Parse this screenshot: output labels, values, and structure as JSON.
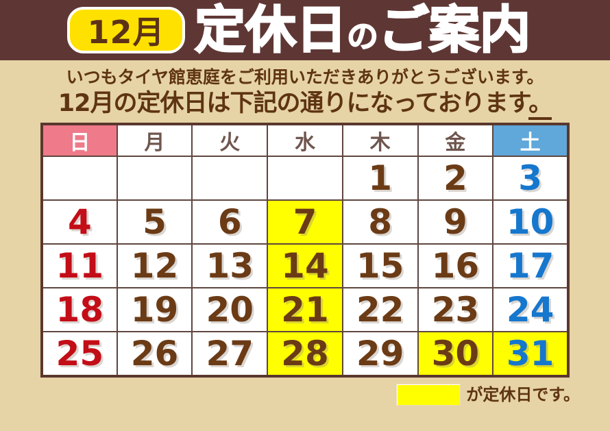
{
  "header": {
    "badge": "12月",
    "title_main1": "定休日",
    "title_particle": "の",
    "title_main2": "ご案内"
  },
  "intro": {
    "line1": "いつもタイヤ館恵庭をご利用いただきありがとうございます。",
    "line2_main": "12月の定休日は下記の通りになっております",
    "line2_tail": "。"
  },
  "calendar": {
    "weekdays": [
      {
        "label": "日",
        "type": "sunday"
      },
      {
        "label": "月",
        "type": "weekday"
      },
      {
        "label": "火",
        "type": "weekday"
      },
      {
        "label": "水",
        "type": "weekday"
      },
      {
        "label": "木",
        "type": "weekday"
      },
      {
        "label": "金",
        "type": "weekday"
      },
      {
        "label": "土",
        "type": "saturday"
      }
    ],
    "rows": [
      [
        {
          "day": "",
          "color": "brown",
          "holiday": false
        },
        {
          "day": "",
          "color": "brown",
          "holiday": false
        },
        {
          "day": "",
          "color": "brown",
          "holiday": false
        },
        {
          "day": "",
          "color": "brown",
          "holiday": false
        },
        {
          "day": "1",
          "color": "brown",
          "holiday": false
        },
        {
          "day": "2",
          "color": "brown",
          "holiday": false
        },
        {
          "day": "3",
          "color": "blue",
          "holiday": false
        }
      ],
      [
        {
          "day": "4",
          "color": "red",
          "holiday": false
        },
        {
          "day": "5",
          "color": "brown",
          "holiday": false
        },
        {
          "day": "6",
          "color": "brown",
          "holiday": false
        },
        {
          "day": "7",
          "color": "brown",
          "holiday": true
        },
        {
          "day": "8",
          "color": "brown",
          "holiday": false
        },
        {
          "day": "9",
          "color": "brown",
          "holiday": false
        },
        {
          "day": "10",
          "color": "blue",
          "holiday": false
        }
      ],
      [
        {
          "day": "11",
          "color": "red",
          "holiday": false
        },
        {
          "day": "12",
          "color": "brown",
          "holiday": false
        },
        {
          "day": "13",
          "color": "brown",
          "holiday": false
        },
        {
          "day": "14",
          "color": "brown",
          "holiday": true
        },
        {
          "day": "15",
          "color": "brown",
          "holiday": false
        },
        {
          "day": "16",
          "color": "brown",
          "holiday": false
        },
        {
          "day": "17",
          "color": "blue",
          "holiday": false
        }
      ],
      [
        {
          "day": "18",
          "color": "red",
          "holiday": false
        },
        {
          "day": "19",
          "color": "brown",
          "holiday": false
        },
        {
          "day": "20",
          "color": "brown",
          "holiday": false
        },
        {
          "day": "21",
          "color": "brown",
          "holiday": true
        },
        {
          "day": "22",
          "color": "brown",
          "holiday": false
        },
        {
          "day": "23",
          "color": "brown",
          "holiday": false
        },
        {
          "day": "24",
          "color": "blue",
          "holiday": false
        }
      ],
      [
        {
          "day": "25",
          "color": "red",
          "holiday": false
        },
        {
          "day": "26",
          "color": "brown",
          "holiday": false
        },
        {
          "day": "27",
          "color": "brown",
          "holiday": false
        },
        {
          "day": "28",
          "color": "brown",
          "holiday": true
        },
        {
          "day": "29",
          "color": "brown",
          "holiday": false
        },
        {
          "day": "30",
          "color": "brown",
          "holiday": true
        },
        {
          "day": "31",
          "color": "blue",
          "holiday": true
        }
      ]
    ],
    "holiday_days": [
      7,
      14,
      21,
      28,
      30,
      31
    ]
  },
  "legend": {
    "swatch_color": "#ffff00",
    "text": "が定休日です。"
  },
  "colors": {
    "titlebar_bg": "#5e3735",
    "page_bg": "#e6d3a6",
    "badge_yellow": "#ffe100",
    "badge_text_brown": "#5c3317",
    "heading_text_brown": "#5e3412",
    "sunday_header_bg": "#ee7a8a",
    "saturday_header_bg": "#60a7da",
    "weekday_header_text": "#6f564e",
    "holiday_highlight_yellow": "#ffff00",
    "date_red": "#c30d17",
    "date_brown": "#6b3b16",
    "date_blue": "#1577cd",
    "table_border": "#5a372e"
  }
}
